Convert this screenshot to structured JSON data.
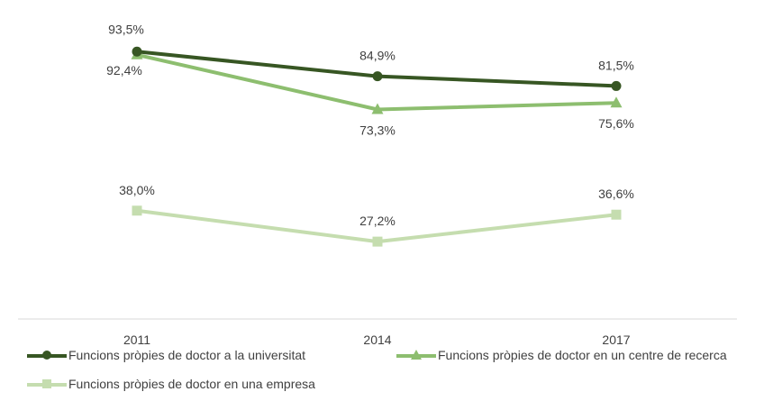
{
  "chart_data": {
    "type": "line",
    "categories": [
      "2011",
      "2014",
      "2017"
    ],
    "ylim": [
      0,
      100
    ],
    "grid": false,
    "legend_position": "bottom",
    "series": [
      {
        "name": "Funcions pròpies de doctor a la universitat",
        "values": [
          93.5,
          84.9,
          81.5
        ],
        "labels": [
          "93,5%",
          "84,9%",
          "81,5%"
        ],
        "label_side": [
          "above",
          "above",
          "above"
        ],
        "color": "#375623",
        "marker": "circle"
      },
      {
        "name": "Funcions pròpies de doctor en un centre de recerca",
        "values": [
          92.4,
          73.3,
          75.6
        ],
        "labels": [
          "92,4%",
          "73,3%",
          "75,6%"
        ],
        "label_side": [
          "below-left",
          "below",
          "below"
        ],
        "color": "#8DBE6F",
        "marker": "triangle"
      },
      {
        "name": "Funcions pròpies de doctor en una empresa",
        "values": [
          38.0,
          27.2,
          36.6
        ],
        "labels": [
          "38,0%",
          "27,2%",
          "36,6%"
        ],
        "label_side": [
          "above",
          "above",
          "above"
        ],
        "color": "#C5DDAF",
        "marker": "square"
      }
    ],
    "axis_color": "#D9D9D9"
  }
}
